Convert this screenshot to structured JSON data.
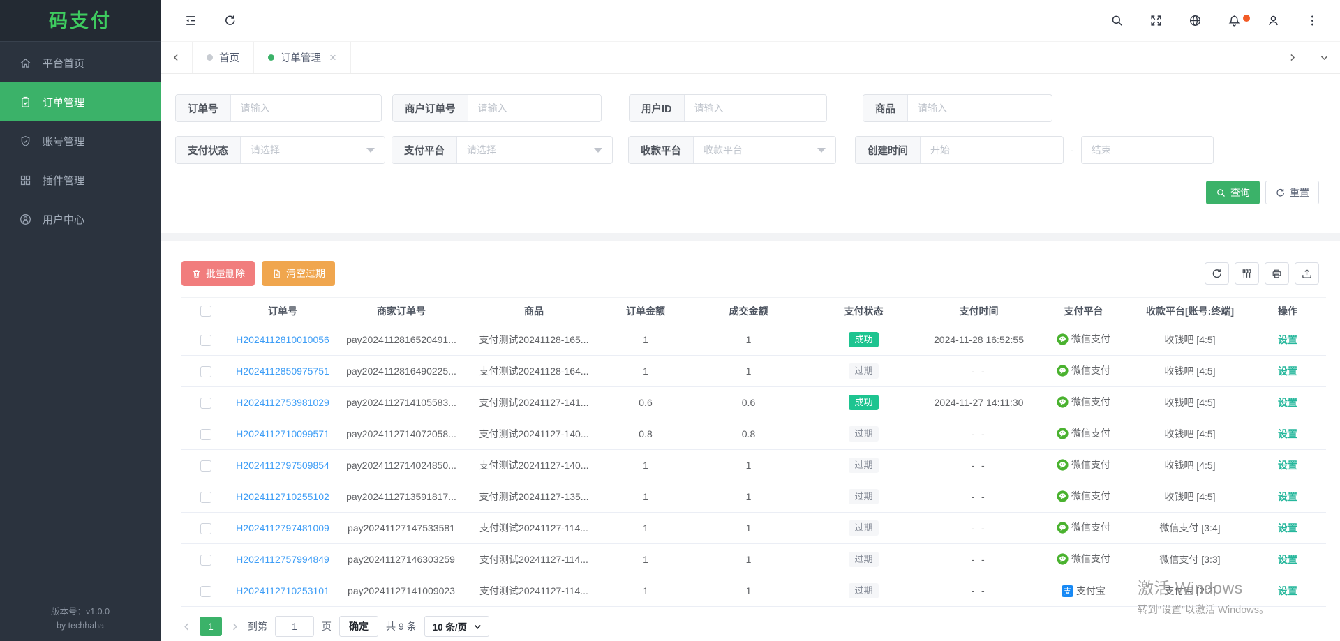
{
  "app": {
    "logo_text": "码支付",
    "version_line1": "版本号：v1.0.0",
    "version_line2": "by techhaha"
  },
  "sidebar": {
    "items": [
      {
        "key": "home",
        "icon": "home",
        "label": "平台首页",
        "active": false
      },
      {
        "key": "orders",
        "icon": "order",
        "label": "订单管理",
        "active": true
      },
      {
        "key": "accounts",
        "icon": "shield",
        "label": "账号管理",
        "active": false
      },
      {
        "key": "plugins",
        "icon": "plugin",
        "label": "插件管理",
        "active": false
      },
      {
        "key": "user-center",
        "icon": "usercenter",
        "label": "用户中心",
        "active": false
      }
    ]
  },
  "topbar": {
    "left_icons": [
      {
        "key": "collapse"
      },
      {
        "key": "refresh"
      }
    ],
    "right_icons": [
      {
        "key": "search"
      },
      {
        "key": "fullscreen"
      },
      {
        "key": "globe"
      },
      {
        "key": "bell",
        "badge": true
      },
      {
        "key": "user"
      },
      {
        "key": "more"
      }
    ]
  },
  "tabs": {
    "items": [
      {
        "label": "首页",
        "active": false,
        "closable": false
      },
      {
        "label": "订单管理",
        "active": true,
        "closable": true
      }
    ]
  },
  "filters": {
    "fields": [
      {
        "key": "order-no",
        "row": 1,
        "label": "订单号",
        "type": "input",
        "placeholder": "请输入"
      },
      {
        "key": "merchant-order-no",
        "row": 1,
        "label": "商户订单号",
        "type": "input",
        "placeholder": "请输入"
      },
      {
        "key": "user-id",
        "row": 1,
        "label": "用户ID",
        "type": "input",
        "placeholder": "请输入"
      },
      {
        "key": "product",
        "row": 1,
        "label": "商品",
        "type": "input",
        "placeholder": "请输入"
      },
      {
        "key": "pay-status",
        "row": 2,
        "label": "支付状态",
        "type": "select",
        "placeholder": "请选择"
      },
      {
        "key": "pay-platform",
        "row": 2,
        "label": "支付平台",
        "type": "select",
        "placeholder": "请选择"
      },
      {
        "key": "receive-platform",
        "row": 2,
        "label": "收款平台",
        "type": "select",
        "placeholder": "收款平台"
      },
      {
        "key": "create-time",
        "row": 2,
        "label": "创建时间",
        "type": "daterange",
        "placeholder_start": "开始",
        "separator": "-",
        "placeholder_end": "结束"
      }
    ],
    "search_button": "查询",
    "reset_button": "重置"
  },
  "table": {
    "batch_delete_button": "批量删除",
    "clear_expired_button": "清空过期",
    "tool_icons": [
      {
        "key": "refresh"
      },
      {
        "key": "columns"
      },
      {
        "key": "print"
      },
      {
        "key": "export"
      }
    ],
    "headers": [
      "订单号",
      "商家订单号",
      "商品",
      "订单金额",
      "成交金额",
      "支付状态",
      "支付时间",
      "支付平台",
      "收款平台[账号:终端]",
      "操作"
    ],
    "action_label": "设置",
    "rows": [
      {
        "order_no": "H2024112810010056",
        "merchant_no": "pay2024112816520491...",
        "product": "支付测试20241128-165...",
        "amount": "1",
        "paid": "1",
        "status": {
          "text": "成功",
          "type": "success"
        },
        "pay_time": "2024-11-28 16:52:55",
        "platform": {
          "name": "微信支付",
          "type": "wechat"
        },
        "receiver": "收钱吧 [4:5]"
      },
      {
        "order_no": "H2024112850975751",
        "merchant_no": "pay2024112816490225...",
        "product": "支付测试20241128-164...",
        "amount": "1",
        "paid": "1",
        "status": {
          "text": "过期",
          "type": "expired"
        },
        "pay_time": "- -",
        "platform": {
          "name": "微信支付",
          "type": "wechat"
        },
        "receiver": "收钱吧 [4:5]"
      },
      {
        "order_no": "H2024112753981029",
        "merchant_no": "pay2024112714105583...",
        "product": "支付测试20241127-141...",
        "amount": "0.6",
        "paid": "0.6",
        "status": {
          "text": "成功",
          "type": "success"
        },
        "pay_time": "2024-11-27 14:11:30",
        "platform": {
          "name": "微信支付",
          "type": "wechat"
        },
        "receiver": "收钱吧 [4:5]"
      },
      {
        "order_no": "H2024112710099571",
        "merchant_no": "pay2024112714072058...",
        "product": "支付测试20241127-140...",
        "amount": "0.8",
        "paid": "0.8",
        "status": {
          "text": "过期",
          "type": "expired"
        },
        "pay_time": "- -",
        "platform": {
          "name": "微信支付",
          "type": "wechat"
        },
        "receiver": "收钱吧 [4:5]"
      },
      {
        "order_no": "H2024112797509854",
        "merchant_no": "pay2024112714024850...",
        "product": "支付测试20241127-140...",
        "amount": "1",
        "paid": "1",
        "status": {
          "text": "过期",
          "type": "expired"
        },
        "pay_time": "- -",
        "platform": {
          "name": "微信支付",
          "type": "wechat"
        },
        "receiver": "收钱吧 [4:5]"
      },
      {
        "order_no": "H2024112710255102",
        "merchant_no": "pay2024112713591817...",
        "product": "支付测试20241127-135...",
        "amount": "1",
        "paid": "1",
        "status": {
          "text": "过期",
          "type": "expired"
        },
        "pay_time": "- -",
        "platform": {
          "name": "微信支付",
          "type": "wechat"
        },
        "receiver": "收钱吧 [4:5]"
      },
      {
        "order_no": "H2024112797481009",
        "merchant_no": "pay20241127147533581",
        "product": "支付测试20241127-114...",
        "amount": "1",
        "paid": "1",
        "status": {
          "text": "过期",
          "type": "expired"
        },
        "pay_time": "- -",
        "platform": {
          "name": "微信支付",
          "type": "wechat"
        },
        "receiver": "微信支付 [3:4]"
      },
      {
        "order_no": "H2024112757994849",
        "merchant_no": "pay20241127146303259",
        "product": "支付测试20241127-114...",
        "amount": "1",
        "paid": "1",
        "status": {
          "text": "过期",
          "type": "expired"
        },
        "pay_time": "- -",
        "platform": {
          "name": "微信支付",
          "type": "wechat"
        },
        "receiver": "微信支付 [3:3]"
      },
      {
        "order_no": "H2024112710253101",
        "merchant_no": "pay20241127141009023",
        "product": "支付测试20241127-114...",
        "amount": "1",
        "paid": "1",
        "status": {
          "text": "过期",
          "type": "expired"
        },
        "pay_time": "- -",
        "platform": {
          "name": "支付宝",
          "type": "alipay"
        },
        "receiver": "支付宝 [2:2]"
      }
    ]
  },
  "pagination": {
    "current_page": "1",
    "goto_prefix": "到第",
    "goto_value": "1",
    "goto_suffix": "页",
    "confirm_button": "确定",
    "total_text": "共 9 条",
    "page_size_text": "10 条/页"
  },
  "watermark": {
    "line1": "激活 Windows",
    "line2": "转到“设置”以激活 Windows。"
  },
  "colors": {
    "primary_green": "#3bb269",
    "logo_green": "#3ecb5f",
    "link_blue": "#3d9df6",
    "action_teal": "#26b79c",
    "success_badge": "#1ec490",
    "danger": "#f17d7d",
    "warning": "#f0a64e",
    "notification_dot": "#f25b26",
    "wechat_green": "#4ab22f",
    "alipay_blue": "#1789f5",
    "sidebar_bg": "#2b333e"
  }
}
